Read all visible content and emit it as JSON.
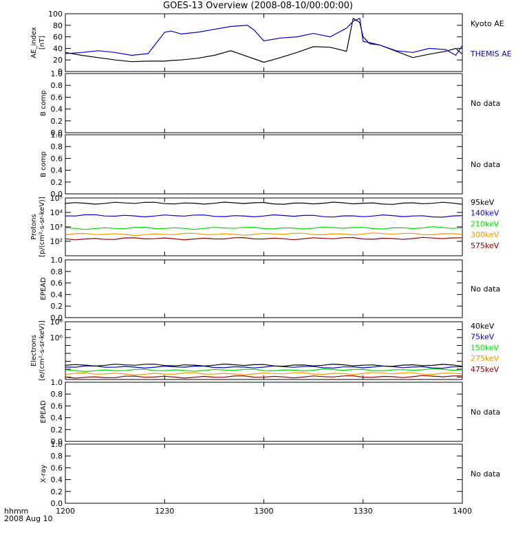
{
  "title": "GOES-13 Overview (2008-08-10/00:00:00)",
  "footer": {
    "time_format": "hhmm",
    "date": "2008 Aug 10"
  },
  "colors": {
    "black": "#000000",
    "blue": "#0000cc",
    "green": "#00dd00",
    "orange": "#ee9900",
    "darkred": "#880000",
    "frame": "#000000"
  },
  "chart_data": [
    {
      "type": "line",
      "ylabel": "AE_index [nT]",
      "ylim": [
        0,
        100
      ],
      "yticks": [
        "0",
        "20",
        "40",
        "60",
        "80",
        "100"
      ],
      "x": [
        "1200",
        "1205",
        "1210",
        "1215",
        "1220",
        "1225",
        "1230",
        "1232",
        "1235",
        "1240",
        "1245",
        "1250",
        "1255",
        "1257",
        "1300",
        "1305",
        "1310",
        "1315",
        "1320",
        "1325",
        "1327",
        "1329",
        "1330",
        "1332",
        "1335",
        "1340",
        "1345",
        "1350",
        "1355",
        "1358",
        "1400"
      ],
      "series": [
        {
          "name": "Kyoto AE",
          "color": "black",
          "values": [
            33,
            28,
            24,
            20,
            17,
            18,
            18,
            19,
            20,
            23,
            28,
            36,
            26,
            22,
            16,
            24,
            33,
            43,
            42,
            35,
            92,
            85,
            60,
            48,
            46,
            35,
            24,
            30,
            35,
            40,
            30
          ]
        },
        {
          "name": "THEMIS AE",
          "color": "blue",
          "values": [
            31,
            33,
            36,
            33,
            28,
            31,
            68,
            70,
            65,
            68,
            73,
            78,
            80,
            72,
            53,
            58,
            60,
            66,
            60,
            75,
            87,
            92,
            52,
            50,
            46,
            36,
            33,
            40,
            38,
            28,
            45
          ]
        }
      ]
    },
    {
      "type": "line",
      "ylabel": "B comp",
      "ylim": [
        0,
        1
      ],
      "yticks": [
        "0.0",
        "0.2",
        "0.4",
        "0.6",
        "0.8",
        "1.0"
      ],
      "status": "No data"
    },
    {
      "type": "line",
      "ylabel": "B comp",
      "ylim": [
        0,
        1
      ],
      "yticks": [
        "0.0",
        "0.2",
        "0.4",
        "0.6",
        "0.8",
        "1.0"
      ],
      "status": "No data"
    },
    {
      "type": "line",
      "ylabel": "Protons [p/(cm²-s-sr-keV)]",
      "yscale": "log",
      "ylim": [
        10,
        100000
      ],
      "ytick_labels": [
        "10²",
        "10³",
        "10⁴",
        "10⁵"
      ],
      "x": [
        "1200",
        "1400"
      ],
      "series": [
        {
          "name": "575keV",
          "color": "darkred",
          "values": [
            150,
            160
          ]
        },
        {
          "name": "300keV",
          "color": "orange",
          "values": [
            300,
            330
          ]
        },
        {
          "name": "210keV",
          "color": "green",
          "values": [
            800,
            850
          ]
        },
        {
          "name": "140keV",
          "color": "blue",
          "values": [
            6000,
            5500
          ]
        },
        {
          "name": "95keV",
          "color": "black",
          "values": [
            45000,
            42000
          ]
        }
      ]
    },
    {
      "type": "line",
      "ylabel": "EPEAD",
      "ylim": [
        0,
        1
      ],
      "yticks": [
        "0.0",
        "0.2",
        "0.4",
        "0.6",
        "0.8",
        "1.0"
      ],
      "status": "No data"
    },
    {
      "type": "line",
      "ylabel": "Electrons [e/(cm²-s-sr-keV)]",
      "yscale": "log",
      "ylim": [
        5,
        100000000
      ],
      "ytick_labels": [
        "10⁸",
        "10⁶"
      ],
      "x": [
        "1200",
        "1400"
      ],
      "series": [
        {
          "name": "475keV",
          "color": "darkred",
          "values": [
            10,
            12
          ]
        },
        {
          "name": "275keV",
          "color": "orange",
          "values": [
            25,
            30
          ]
        },
        {
          "name": "150keV",
          "color": "green",
          "values": [
            70,
            85
          ]
        },
        {
          "name": "75keV",
          "color": "blue",
          "values": [
            200,
            180
          ]
        },
        {
          "name": "40keV",
          "color": "black",
          "values": [
            350,
            300
          ]
        }
      ]
    },
    {
      "type": "line",
      "ylabel": "EPEAD",
      "ylim": [
        0,
        1
      ],
      "yticks": [
        "0.0",
        "0.2",
        "0.4",
        "0.6",
        "0.8",
        "1.0"
      ],
      "status": "No data"
    },
    {
      "type": "line",
      "ylabel": "X-ray",
      "ylim": [
        0,
        1
      ],
      "yticks": [
        "0.0",
        "0.2",
        "0.4",
        "0.6",
        "0.8",
        "1.0"
      ],
      "status": "No data"
    }
  ],
  "xaxis": {
    "ticks": [
      "1200",
      "1230",
      "1300",
      "1330",
      "1400"
    ]
  }
}
